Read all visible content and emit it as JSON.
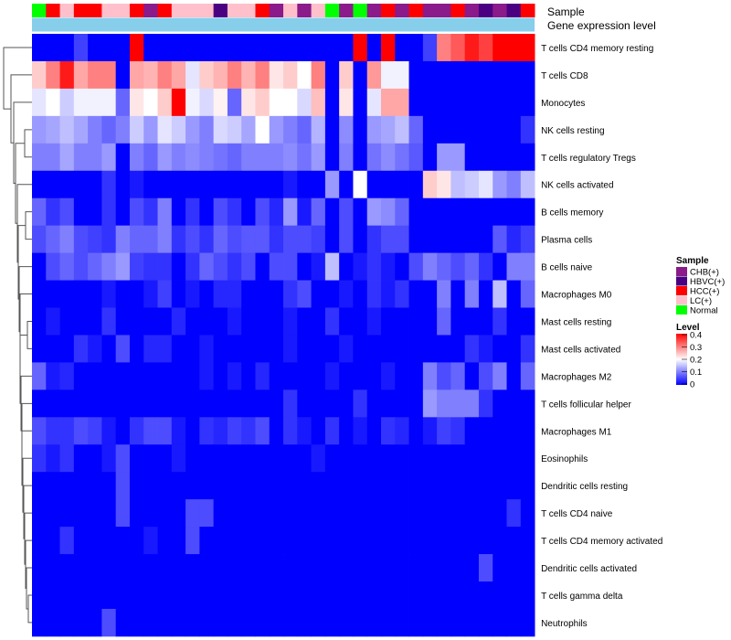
{
  "chart_data": {
    "type": "heatmap",
    "title": "",
    "annotation_tracks": [
      {
        "label": "Sample"
      },
      {
        "label": "Gene expression level"
      }
    ],
    "sample_groups": [
      {
        "name": "CHB(+)",
        "color": "#8b1a8b"
      },
      {
        "name": "HBVC(+)",
        "color": "#4b0082"
      },
      {
        "name": "HCC(+)",
        "color": "#ff0000"
      },
      {
        "name": "LC(+)",
        "color": "#ffc0cb"
      },
      {
        "name": "Normal",
        "color": "#00ff00"
      }
    ],
    "sample_annotation": [
      "Normal",
      "HCC(+)",
      "LC(+)",
      "HCC(+)",
      "HCC(+)",
      "LC(+)",
      "LC(+)",
      "HCC(+)",
      "CHB(+)",
      "HCC(+)",
      "LC(+)",
      "LC(+)",
      "LC(+)",
      "HBVC(+)",
      "LC(+)",
      "LC(+)",
      "HCC(+)",
      "CHB(+)",
      "LC(+)",
      "CHB(+)",
      "LC(+)",
      "Normal",
      "CHB(+)",
      "Normal",
      "CHB(+)",
      "HCC(+)",
      "CHB(+)",
      "HCC(+)",
      "CHB(+)",
      "CHB(+)",
      "HCC(+)",
      "CHB(+)",
      "HBVC(+)",
      "CHB(+)",
      "HBVC(+)",
      "HCC(+)"
    ],
    "expression_track_color": "#87ceeb",
    "rows": [
      "T cells CD4 memory resting",
      "T cells CD8",
      "Monocytes",
      "NK cells resting",
      "T cells regulatory  Tregs",
      "NK cells activated",
      "B cells memory",
      "Plasma cells",
      "B cells naive",
      "Macrophages M0",
      "Mast cells resting",
      "Mast cells activated",
      "Macrophages M2",
      "T cells follicular helper",
      "Macrophages M1",
      "Eosinophils",
      "Dendritic cells resting",
      "T cells CD4 naive",
      "T cells CD4 memory activated",
      "Dendritic cells activated",
      "T cells gamma delta",
      "Neutrophils"
    ],
    "values": [
      [
        0.0,
        0.0,
        0.0,
        0.05,
        0.0,
        0.0,
        0.0,
        0.4,
        0.0,
        0.0,
        0.0,
        0.0,
        0.0,
        0.0,
        0.0,
        0.0,
        0.0,
        0.0,
        0.0,
        0.0,
        0.0,
        0.0,
        0.0,
        0.45,
        0.0,
        0.4,
        0.0,
        0.0,
        0.05,
        0.3,
        0.33,
        0.38,
        0.35,
        0.4,
        0.4,
        0.4
      ],
      [
        0.24,
        0.3,
        0.38,
        0.27,
        0.3,
        0.3,
        0.0,
        0.27,
        0.26,
        0.3,
        0.27,
        0.18,
        0.24,
        0.26,
        0.3,
        0.26,
        0.3,
        0.22,
        0.24,
        0.2,
        0.3,
        0.0,
        0.24,
        0.0,
        0.28,
        0.19,
        0.19,
        0.0,
        0.0,
        0.0,
        0.0,
        0.0,
        0.0,
        0.0,
        0.0,
        0.0
      ],
      [
        0.18,
        0.2,
        0.16,
        0.19,
        0.19,
        0.19,
        0.08,
        0.22,
        0.2,
        0.24,
        0.4,
        0.19,
        0.17,
        0.21,
        0.08,
        0.22,
        0.24,
        0.2,
        0.2,
        0.17,
        0.25,
        0.0,
        0.22,
        0.0,
        0.18,
        0.27,
        0.27,
        0.0,
        0.0,
        0.0,
        0.0,
        0.0,
        0.0,
        0.0,
        0.0,
        0.0
      ],
      [
        0.12,
        0.13,
        0.15,
        0.13,
        0.1,
        0.08,
        0.1,
        0.16,
        0.12,
        0.18,
        0.16,
        0.12,
        0.1,
        0.17,
        0.16,
        0.13,
        0.2,
        0.12,
        0.1,
        0.08,
        0.14,
        0.0,
        0.11,
        0.0,
        0.12,
        0.13,
        0.15,
        0.08,
        0.0,
        0.0,
        0.0,
        0.0,
        0.0,
        0.0,
        0.0,
        0.04
      ],
      [
        0.1,
        0.1,
        0.13,
        0.1,
        0.1,
        0.12,
        0.0,
        0.1,
        0.08,
        0.12,
        0.1,
        0.11,
        0.1,
        0.09,
        0.08,
        0.1,
        0.1,
        0.1,
        0.11,
        0.09,
        0.12,
        0.0,
        0.1,
        0.0,
        0.09,
        0.11,
        0.09,
        0.07,
        0.0,
        0.12,
        0.12,
        0.0,
        0.0,
        0.0,
        0.0,
        0.0
      ],
      [
        0.0,
        0.0,
        0.0,
        0.0,
        0.0,
        0.04,
        0.0,
        0.02,
        0.0,
        0.0,
        0.0,
        0.0,
        0.0,
        0.0,
        0.0,
        0.0,
        0.0,
        0.0,
        0.02,
        0.0,
        0.0,
        0.12,
        0.0,
        0.2,
        0.0,
        0.0,
        0.0,
        0.0,
        0.24,
        0.22,
        0.15,
        0.16,
        0.18,
        0.12,
        0.1,
        0.15
      ],
      [
        0.08,
        0.04,
        0.06,
        0.0,
        0.0,
        0.04,
        0.0,
        0.06,
        0.04,
        0.1,
        0.0,
        0.04,
        0.0,
        0.06,
        0.04,
        0.0,
        0.06,
        0.03,
        0.12,
        0.02,
        0.08,
        0.0,
        0.06,
        0.0,
        0.12,
        0.11,
        0.08,
        0.0,
        0.0,
        0.0,
        0.0,
        0.0,
        0.0,
        0.0,
        0.0,
        0.0
      ],
      [
        0.06,
        0.08,
        0.1,
        0.06,
        0.05,
        0.04,
        0.1,
        0.08,
        0.08,
        0.1,
        0.04,
        0.06,
        0.04,
        0.08,
        0.06,
        0.07,
        0.07,
        0.04,
        0.06,
        0.06,
        0.05,
        0.0,
        0.06,
        0.0,
        0.04,
        0.06,
        0.06,
        0.0,
        0.0,
        0.0,
        0.0,
        0.0,
        0.0,
        0.07,
        0.03,
        0.05
      ],
      [
        0.0,
        0.06,
        0.08,
        0.06,
        0.08,
        0.1,
        0.12,
        0.05,
        0.04,
        0.04,
        0.0,
        0.04,
        0.08,
        0.06,
        0.04,
        0.06,
        0.0,
        0.06,
        0.06,
        0.0,
        0.02,
        0.15,
        0.0,
        0.02,
        0.04,
        0.02,
        0.0,
        0.06,
        0.1,
        0.08,
        0.06,
        0.08,
        0.04,
        0.0,
        0.1,
        0.1
      ],
      [
        0.0,
        0.0,
        0.0,
        0.0,
        0.0,
        0.02,
        0.0,
        0.0,
        0.02,
        0.05,
        0.0,
        0.02,
        0.0,
        0.03,
        0.03,
        0.0,
        0.0,
        0.0,
        0.04,
        0.06,
        0.0,
        0.0,
        0.02,
        0.0,
        0.04,
        0.02,
        0.04,
        0.0,
        0.0,
        0.1,
        0.0,
        0.1,
        0.0,
        0.15,
        0.0,
        0.08
      ],
      [
        0.0,
        0.02,
        0.0,
        0.0,
        0.0,
        0.04,
        0.0,
        0.0,
        0.0,
        0.0,
        0.03,
        0.0,
        0.0,
        0.0,
        0.02,
        0.0,
        0.0,
        0.0,
        0.02,
        0.0,
        0.0,
        0.04,
        0.0,
        0.0,
        0.02,
        0.0,
        0.0,
        0.0,
        0.0,
        0.08,
        0.0,
        0.0,
        0.0,
        0.04,
        0.0,
        0.0
      ],
      [
        0.0,
        0.0,
        0.0,
        0.04,
        0.02,
        0.0,
        0.06,
        0.0,
        0.03,
        0.03,
        0.0,
        0.0,
        0.02,
        0.0,
        0.0,
        0.0,
        0.0,
        0.0,
        0.02,
        0.0,
        0.0,
        0.0,
        0.02,
        0.0,
        0.0,
        0.0,
        0.0,
        0.0,
        0.0,
        0.0,
        0.0,
        0.04,
        0.02,
        0.0,
        0.0,
        0.04
      ],
      [
        0.08,
        0.02,
        0.03,
        0.0,
        0.0,
        0.0,
        0.0,
        0.0,
        0.0,
        0.0,
        0.0,
        0.0,
        0.02,
        0.0,
        0.02,
        0.0,
        0.03,
        0.0,
        0.0,
        0.0,
        0.0,
        0.02,
        0.0,
        0.0,
        0.0,
        0.02,
        0.0,
        0.0,
        0.1,
        0.06,
        0.08,
        0.0,
        0.06,
        0.1,
        0.0,
        0.08
      ],
      [
        0.0,
        0.0,
        0.0,
        0.0,
        0.0,
        0.0,
        0.0,
        0.0,
        0.0,
        0.0,
        0.0,
        0.0,
        0.0,
        0.0,
        0.0,
        0.0,
        0.0,
        0.0,
        0.04,
        0.0,
        0.0,
        0.0,
        0.0,
        0.04,
        0.0,
        0.0,
        0.0,
        0.0,
        0.12,
        0.1,
        0.1,
        0.1,
        0.04,
        0.0,
        0.0,
        0.0
      ],
      [
        0.06,
        0.04,
        0.04,
        0.06,
        0.05,
        0.02,
        0.0,
        0.04,
        0.06,
        0.06,
        0.02,
        0.0,
        0.04,
        0.03,
        0.05,
        0.04,
        0.06,
        0.0,
        0.04,
        0.02,
        0.0,
        0.04,
        0.0,
        0.02,
        0.0,
        0.04,
        0.03,
        0.0,
        0.02,
        0.05,
        0.04,
        0.0,
        0.0,
        0.0,
        0.0,
        0.0
      ],
      [
        0.04,
        0.02,
        0.04,
        0.0,
        0.0,
        0.02,
        0.06,
        0.0,
        0.0,
        0.0,
        0.02,
        0.0,
        0.0,
        0.0,
        0.0,
        0.0,
        0.0,
        0.0,
        0.0,
        0.0,
        0.02,
        0.0,
        0.0,
        0.0,
        0.0,
        0.0,
        0.0,
        0.0,
        0.0,
        0.0,
        0.0,
        0.0,
        0.0,
        0.0,
        0.0,
        0.0
      ],
      [
        0.0,
        0.0,
        0.0,
        0.0,
        0.0,
        0.0,
        0.06,
        0.0,
        0.0,
        0.0,
        0.0,
        0.0,
        0.0,
        0.0,
        0.0,
        0.0,
        0.0,
        0.0,
        0.0,
        0.0,
        0.0,
        0.0,
        0.0,
        0.0,
        0.0,
        0.0,
        0.0,
        0.0,
        0.0,
        0.0,
        0.0,
        0.0,
        0.0,
        0.0,
        0.0,
        0.0
      ],
      [
        0.0,
        0.0,
        0.0,
        0.0,
        0.0,
        0.0,
        0.06,
        0.0,
        0.0,
        0.0,
        0.0,
        0.06,
        0.06,
        0.0,
        0.0,
        0.0,
        0.0,
        0.0,
        0.0,
        0.0,
        0.0,
        0.0,
        0.0,
        0.0,
        0.0,
        0.0,
        0.0,
        0.0,
        0.0,
        0.0,
        0.0,
        0.0,
        0.0,
        0.0,
        0.04,
        0.0
      ],
      [
        0.0,
        0.0,
        0.04,
        0.0,
        0.0,
        0.0,
        0.0,
        0.0,
        0.02,
        0.0,
        0.0,
        0.06,
        0.0,
        0.0,
        0.0,
        0.0,
        0.0,
        0.0,
        0.0,
        0.0,
        0.0,
        0.0,
        0.0,
        0.0,
        0.0,
        0.0,
        0.0,
        0.0,
        0.0,
        0.0,
        0.0,
        0.0,
        0.0,
        0.0,
        0.0,
        0.0
      ],
      [
        0.0,
        0.0,
        0.0,
        0.0,
        0.0,
        0.0,
        0.0,
        0.0,
        0.0,
        0.0,
        0.0,
        0.0,
        0.0,
        0.0,
        0.0,
        0.0,
        0.0,
        0.0,
        0.0,
        0.0,
        0.0,
        0.0,
        0.0,
        0.0,
        0.0,
        0.0,
        0.0,
        0.0,
        0.0,
        0.0,
        0.0,
        0.0,
        0.06,
        0.0,
        0.0,
        0.0
      ],
      [
        0.0,
        0.0,
        0.0,
        0.0,
        0.0,
        0.0,
        0.0,
        0.0,
        0.0,
        0.0,
        0.0,
        0.0,
        0.0,
        0.0,
        0.0,
        0.0,
        0.0,
        0.0,
        0.0,
        0.0,
        0.0,
        0.0,
        0.0,
        0.0,
        0.0,
        0.0,
        0.0,
        0.0,
        0.0,
        0.0,
        0.0,
        0.0,
        0.0,
        0.0,
        0.0,
        0.0
      ],
      [
        0.0,
        0.0,
        0.0,
        0.0,
        0.0,
        0.06,
        0.0,
        0.0,
        0.0,
        0.0,
        0.0,
        0.0,
        0.0,
        0.0,
        0.0,
        0.0,
        0.0,
        0.0,
        0.0,
        0.0,
        0.0,
        0.0,
        0.0,
        0.0,
        0.0,
        0.0,
        0.0,
        0.0,
        0.0,
        0.0,
        0.0,
        0.0,
        0.0,
        0.0,
        0.0,
        0.0
      ]
    ],
    "color_scale": {
      "min": 0,
      "max": 0.4,
      "colors": [
        "#0000ff",
        "#ffffff",
        "#ff0000"
      ]
    },
    "legend": {
      "sample_title": "Sample",
      "level_title": "Level",
      "level_ticks": [
        "0.4",
        "0.3",
        "0.2",
        "0.1",
        "0"
      ],
      "position": "right"
    }
  }
}
